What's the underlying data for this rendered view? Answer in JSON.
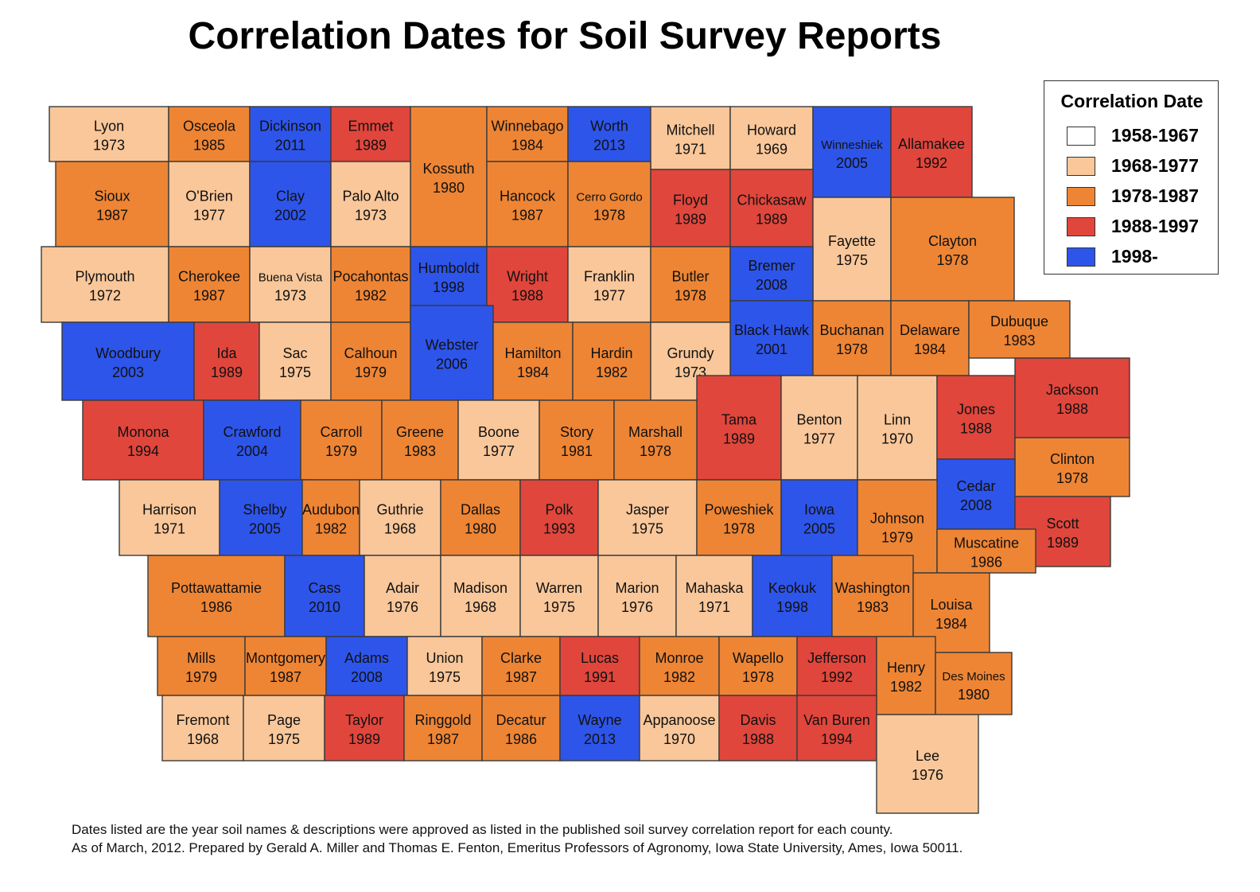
{
  "title": "Correlation Dates for Soil Survey Reports",
  "legend": {
    "title": "Correlation Date",
    "items": [
      {
        "label": "1958-1967",
        "color": "#ffffff"
      },
      {
        "label": "1968-1977",
        "color": "#f9c79a"
      },
      {
        "label": "1978-1987",
        "color": "#ee8534"
      },
      {
        "label": "1988-1997",
        "color": "#e0463c"
      },
      {
        "label": "1998-",
        "color": "#2e55ea"
      }
    ]
  },
  "footnote": {
    "line1": "Dates listed are the year soil names & descriptions were approved as listed in the published soil survey correlation report for each county.",
    "line2": "As of  March, 2012. Prepared by Gerald A. Miller and Thomas E. Fenton, Emeritus Professors of Agronomy, Iowa State University, Ames, Iowa 50011."
  },
  "counties": [
    {
      "name": "Lyon",
      "year": "1973"
    },
    {
      "name": "Osceola",
      "year": "1985"
    },
    {
      "name": "Dickinson",
      "year": "2011"
    },
    {
      "name": "Emmet",
      "year": "1989"
    },
    {
      "name": "Kossuth",
      "year": "1980"
    },
    {
      "name": "Winnebago",
      "year": "1984"
    },
    {
      "name": "Worth",
      "year": "2013"
    },
    {
      "name": "Mitchell",
      "year": "1971"
    },
    {
      "name": "Howard",
      "year": "1969"
    },
    {
      "name": "Winneshiek",
      "year": "2005"
    },
    {
      "name": "Allamakee",
      "year": "1992"
    },
    {
      "name": "Sioux",
      "year": "1987"
    },
    {
      "name": "O'Brien",
      "year": "1977"
    },
    {
      "name": "Clay",
      "year": "2002"
    },
    {
      "name": "Palo Alto",
      "year": "1973"
    },
    {
      "name": "Hancock",
      "year": "1987"
    },
    {
      "name": "Cerro Gordo",
      "year": "1978"
    },
    {
      "name": "Floyd",
      "year": "1989"
    },
    {
      "name": "Chickasaw",
      "year": "1989"
    },
    {
      "name": "Fayette",
      "year": "1975"
    },
    {
      "name": "Clayton",
      "year": "1978"
    },
    {
      "name": "Plymouth",
      "year": "1972"
    },
    {
      "name": "Cherokee",
      "year": "1987"
    },
    {
      "name": "Buena Vista",
      "year": "1973"
    },
    {
      "name": "Pocahontas",
      "year": "1982"
    },
    {
      "name": "Humboldt",
      "year": "1998"
    },
    {
      "name": "Wright",
      "year": "1988"
    },
    {
      "name": "Franklin",
      "year": "1977"
    },
    {
      "name": "Butler",
      "year": "1978"
    },
    {
      "name": "Bremer",
      "year": "2008"
    },
    {
      "name": "Black Hawk",
      "year": "2001"
    },
    {
      "name": "Buchanan",
      "year": "1978"
    },
    {
      "name": "Delaware",
      "year": "1984"
    },
    {
      "name": "Dubuque",
      "year": "1983"
    },
    {
      "name": "Woodbury",
      "year": "2003"
    },
    {
      "name": "Ida",
      "year": "1989"
    },
    {
      "name": "Sac",
      "year": "1975"
    },
    {
      "name": "Calhoun",
      "year": "1979"
    },
    {
      "name": "Webster",
      "year": "2006"
    },
    {
      "name": "Hamilton",
      "year": "1984"
    },
    {
      "name": "Hardin",
      "year": "1982"
    },
    {
      "name": "Grundy",
      "year": "1973"
    },
    {
      "name": "Tama",
      "year": "1989"
    },
    {
      "name": "Benton",
      "year": "1977"
    },
    {
      "name": "Linn",
      "year": "1970"
    },
    {
      "name": "Jones",
      "year": "1988"
    },
    {
      "name": "Jackson",
      "year": "1988"
    },
    {
      "name": "Monona",
      "year": "1994"
    },
    {
      "name": "Crawford",
      "year": "2004"
    },
    {
      "name": "Carroll",
      "year": "1979"
    },
    {
      "name": "Greene",
      "year": "1983"
    },
    {
      "name": "Boone",
      "year": "1977"
    },
    {
      "name": "Story",
      "year": "1981"
    },
    {
      "name": "Marshall",
      "year": "1978"
    },
    {
      "name": "Clinton",
      "year": "1978"
    },
    {
      "name": "Cedar",
      "year": "2008"
    },
    {
      "name": "Scott",
      "year": "1989"
    },
    {
      "name": "Harrison",
      "year": "1971"
    },
    {
      "name": "Shelby",
      "year": "2005"
    },
    {
      "name": "Audubon",
      "year": "1982"
    },
    {
      "name": "Guthrie",
      "year": "1968"
    },
    {
      "name": "Dallas",
      "year": "1980"
    },
    {
      "name": "Polk",
      "year": "1993"
    },
    {
      "name": "Jasper",
      "year": "1975"
    },
    {
      "name": "Poweshiek",
      "year": "1978"
    },
    {
      "name": "Iowa",
      "year": "2005"
    },
    {
      "name": "Johnson",
      "year": "1979"
    },
    {
      "name": "Muscatine",
      "year": "1986"
    },
    {
      "name": "Pottawattamie",
      "year": "1986"
    },
    {
      "name": "Cass",
      "year": "2010"
    },
    {
      "name": "Adair",
      "year": "1976"
    },
    {
      "name": "Madison",
      "year": "1968"
    },
    {
      "name": "Warren",
      "year": "1975"
    },
    {
      "name": "Marion",
      "year": "1976"
    },
    {
      "name": "Mahaska",
      "year": "1971"
    },
    {
      "name": "Keokuk",
      "year": "1998"
    },
    {
      "name": "Washington",
      "year": "1983"
    },
    {
      "name": "Louisa",
      "year": "1984"
    },
    {
      "name": "Mills",
      "year": "1979"
    },
    {
      "name": "Montgomery",
      "year": "1987"
    },
    {
      "name": "Adams",
      "year": "2008"
    },
    {
      "name": "Union",
      "year": "1975"
    },
    {
      "name": "Clarke",
      "year": "1987"
    },
    {
      "name": "Lucas",
      "year": "1991"
    },
    {
      "name": "Monroe",
      "year": "1982"
    },
    {
      "name": "Wapello",
      "year": "1978"
    },
    {
      "name": "Jefferson",
      "year": "1992"
    },
    {
      "name": "Henry",
      "year": "1982"
    },
    {
      "name": "Des Moines",
      "year": "1980"
    },
    {
      "name": "Fremont",
      "year": "1968"
    },
    {
      "name": "Page",
      "year": "1975"
    },
    {
      "name": "Taylor",
      "year": "1989"
    },
    {
      "name": "Ringgold",
      "year": "1987"
    },
    {
      "name": "Decatur",
      "year": "1986"
    },
    {
      "name": "Wayne",
      "year": "2013"
    },
    {
      "name": "Appanoose",
      "year": "1970"
    },
    {
      "name": "Davis",
      "year": "1988"
    },
    {
      "name": "Van Buren",
      "year": "1994"
    },
    {
      "name": "Lee",
      "year": "1976"
    }
  ]
}
